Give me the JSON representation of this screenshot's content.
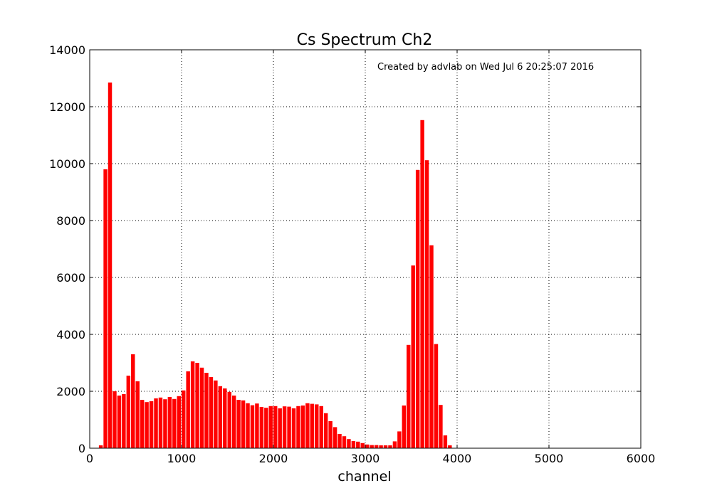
{
  "chart_data": {
    "type": "bar",
    "title": "Cs Spectrum Ch2",
    "xlabel": "channel",
    "ylabel": "",
    "annotation": "Created by advlab on Wed Jul  6 20:25:07 2016",
    "xlim": [
      0,
      6000
    ],
    "ylim": [
      0,
      14000
    ],
    "xticks": [
      0,
      1000,
      2000,
      3000,
      4000,
      5000,
      6000
    ],
    "yticks": [
      0,
      2000,
      4000,
      6000,
      8000,
      10000,
      12000,
      14000
    ],
    "grid": true,
    "bar_color": "#ff0000",
    "bin_width": 50,
    "bin_starts": [
      100,
      150,
      200,
      250,
      300,
      350,
      400,
      450,
      500,
      550,
      600,
      650,
      700,
      750,
      800,
      850,
      900,
      950,
      1000,
      1050,
      1100,
      1150,
      1200,
      1250,
      1300,
      1350,
      1400,
      1450,
      1500,
      1550,
      1600,
      1650,
      1700,
      1750,
      1800,
      1850,
      1900,
      1950,
      2000,
      2050,
      2100,
      2150,
      2200,
      2250,
      2300,
      2350,
      2400,
      2450,
      2500,
      2550,
      2600,
      2650,
      2700,
      2750,
      2800,
      2850,
      2900,
      2950,
      3000,
      3050,
      3100,
      3150,
      3200,
      3250,
      3300,
      3350,
      3400,
      3450,
      3500,
      3550,
      3600,
      3650,
      3700,
      3750,
      3800,
      3850,
      3900,
      3950
    ],
    "values": [
      100,
      9800,
      12850,
      2000,
      1850,
      1900,
      2550,
      3300,
      2350,
      1700,
      1620,
      1650,
      1750,
      1780,
      1720,
      1800,
      1730,
      1830,
      2030,
      2700,
      3050,
      3000,
      2830,
      2650,
      2500,
      2380,
      2180,
      2100,
      1980,
      1850,
      1700,
      1680,
      1580,
      1510,
      1570,
      1450,
      1420,
      1480,
      1480,
      1400,
      1470,
      1460,
      1400,
      1480,
      1500,
      1580,
      1560,
      1540,
      1480,
      1230,
      950,
      740,
      500,
      420,
      320,
      250,
      230,
      180,
      130,
      110,
      110,
      100,
      100,
      100,
      240,
      590,
      1500,
      3630,
      6420,
      9780,
      11530,
      10120,
      7130,
      3660,
      1520,
      450,
      100,
      0
    ]
  }
}
